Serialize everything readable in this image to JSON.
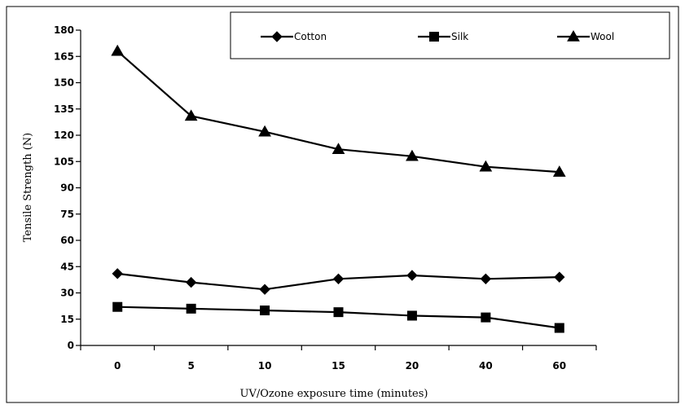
{
  "chart_data": {
    "type": "line",
    "xlabel": "UV/Ozone exposure time (minutes)",
    "ylabel": "Tensile Strength (N)",
    "categories": [
      "0",
      "5",
      "10",
      "15",
      "20",
      "40",
      "60"
    ],
    "y_ticks": [
      "0",
      "15",
      "30",
      "45",
      "60",
      "75",
      "90",
      "105",
      "120",
      "135",
      "150",
      "165",
      "180"
    ],
    "ylim": [
      0,
      180
    ],
    "grid": false,
    "legend_position": "top-right",
    "series": [
      {
        "name": "Cotton",
        "marker": "diamond",
        "color": "#000000",
        "values": [
          41,
          36,
          32,
          38,
          40,
          38,
          39
        ]
      },
      {
        "name": "Silk",
        "marker": "square",
        "color": "#000000",
        "values": [
          22,
          21,
          20,
          19,
          17,
          16,
          10
        ]
      },
      {
        "name": "Wool",
        "marker": "triangle",
        "color": "#000000",
        "values": [
          168,
          131,
          122,
          112,
          108,
          102,
          99
        ]
      }
    ]
  }
}
